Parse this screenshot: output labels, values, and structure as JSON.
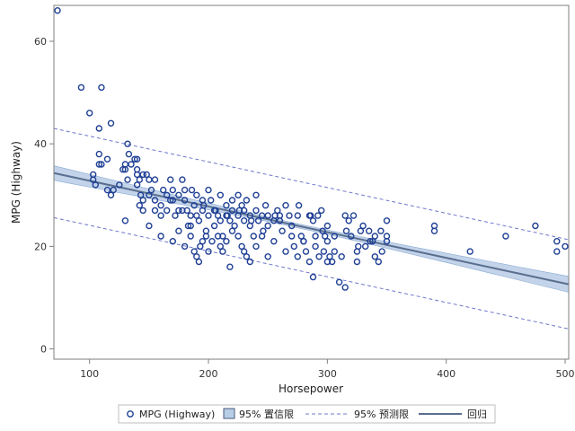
{
  "chart_data": {
    "type": "scatter",
    "title": "",
    "xlabel": "Horsepower",
    "ylabel": "MPG (Highway)",
    "xlim": [
      70,
      503
    ],
    "ylim": [
      -2,
      67
    ],
    "x_ticks": [
      100,
      200,
      300,
      400,
      500
    ],
    "y_ticks": [
      0,
      20,
      40,
      60
    ],
    "grid": false,
    "legend_position": "bottom",
    "colors": {
      "points": "#1f3f94",
      "confidence_band": "#b8cde6",
      "confidence_band_edge": "#8ba9d4",
      "prediction_limits": "#6f78c8",
      "regression_line": "#5a6f8f",
      "frame": "#7f7f7f"
    },
    "series": [
      {
        "name": "MPG (Highway)",
        "kind": "scatter",
        "points": [
          [
            73,
            66
          ],
          [
            93,
            51
          ],
          [
            110,
            51
          ],
          [
            100,
            46
          ],
          [
            118,
            44
          ],
          [
            108,
            43
          ],
          [
            103,
            34
          ],
          [
            103,
            33
          ],
          [
            105,
            32
          ],
          [
            108,
            38
          ],
          [
            108,
            36
          ],
          [
            110,
            36
          ],
          [
            115,
            37
          ],
          [
            120,
            31
          ],
          [
            118,
            30
          ],
          [
            115,
            31
          ],
          [
            125,
            32
          ],
          [
            130,
            36
          ],
          [
            130,
            35
          ],
          [
            132,
            40
          ],
          [
            133,
            38
          ],
          [
            135,
            36
          ],
          [
            132,
            33
          ],
          [
            140,
            37
          ],
          [
            140,
            35
          ],
          [
            140,
            34
          ],
          [
            142,
            33
          ],
          [
            145,
            34
          ],
          [
            150,
            33
          ],
          [
            140,
            32
          ],
          [
            143,
            30
          ],
          [
            142,
            28
          ],
          [
            145,
            27
          ],
          [
            150,
            30
          ],
          [
            152,
            31
          ],
          [
            155,
            29
          ],
          [
            155,
            27
          ],
          [
            160,
            28
          ],
          [
            160,
            26
          ],
          [
            165,
            30
          ],
          [
            165,
            27
          ],
          [
            168,
            33
          ],
          [
            170,
            29
          ],
          [
            170,
            31
          ],
          [
            172,
            26
          ],
          [
            175,
            27
          ],
          [
            175,
            30
          ],
          [
            178,
            33
          ],
          [
            180,
            31
          ],
          [
            180,
            29
          ],
          [
            182,
            27
          ],
          [
            185,
            26
          ],
          [
            185,
            24
          ],
          [
            188,
            28
          ],
          [
            190,
            30
          ],
          [
            190,
            26
          ],
          [
            192,
            25
          ],
          [
            195,
            27
          ],
          [
            195,
            29
          ],
          [
            198,
            22
          ],
          [
            200,
            26
          ],
          [
            200,
            31
          ],
          [
            202,
            29
          ],
          [
            205,
            27
          ],
          [
            205,
            24
          ],
          [
            208,
            26
          ],
          [
            210,
            30
          ],
          [
            210,
            25
          ],
          [
            212,
            22
          ],
          [
            215,
            28
          ],
          [
            215,
            26
          ],
          [
            218,
            25
          ],
          [
            220,
            27
          ],
          [
            220,
            29
          ],
          [
            222,
            24
          ],
          [
            225,
            30
          ],
          [
            225,
            26
          ],
          [
            228,
            28
          ],
          [
            230,
            27
          ],
          [
            230,
            25
          ],
          [
            232,
            29
          ],
          [
            235,
            26
          ],
          [
            235,
            24
          ],
          [
            238,
            22
          ],
          [
            240,
            30
          ],
          [
            240,
            27
          ],
          [
            242,
            25
          ],
          [
            245,
            26
          ],
          [
            248,
            28
          ],
          [
            250,
            24
          ],
          [
            250,
            26
          ],
          [
            255,
            25
          ],
          [
            258,
            27
          ],
          [
            260,
            26
          ],
          [
            262,
            23
          ],
          [
            265,
            28
          ],
          [
            268,
            26
          ],
          [
            270,
            24
          ],
          [
            272,
            20
          ],
          [
            275,
            26
          ],
          [
            278,
            22
          ],
          [
            280,
            21
          ],
          [
            282,
            19
          ],
          [
            285,
            26
          ],
          [
            288,
            25
          ],
          [
            290,
            20
          ],
          [
            292,
            26
          ],
          [
            295,
            27
          ],
          [
            296,
            23
          ],
          [
            298,
            22
          ],
          [
            300,
            24
          ],
          [
            300,
            21
          ],
          [
            302,
            18
          ],
          [
            304,
            17
          ],
          [
            306,
            19
          ],
          [
            130,
            25
          ],
          [
            150,
            24
          ],
          [
            160,
            22
          ],
          [
            170,
            21
          ],
          [
            175,
            23
          ],
          [
            180,
            20
          ],
          [
            183,
            24
          ],
          [
            185,
            22
          ],
          [
            188,
            19
          ],
          [
            190,
            18
          ],
          [
            192,
            17
          ],
          [
            193,
            20
          ],
          [
            195,
            21
          ],
          [
            198,
            23
          ],
          [
            200,
            19
          ],
          [
            203,
            21
          ],
          [
            208,
            22
          ],
          [
            210,
            20
          ],
          [
            212,
            19
          ],
          [
            215,
            21
          ],
          [
            218,
            16
          ],
          [
            220,
            23
          ],
          [
            225,
            22
          ],
          [
            228,
            20
          ],
          [
            230,
            19
          ],
          [
            232,
            18
          ],
          [
            235,
            17
          ],
          [
            240,
            20
          ],
          [
            245,
            22
          ],
          [
            250,
            18
          ],
          [
            255,
            21
          ],
          [
            260,
            25
          ],
          [
            265,
            19
          ],
          [
            270,
            22
          ],
          [
            275,
            18
          ],
          [
            280,
            21
          ],
          [
            285,
            17
          ],
          [
            288,
            14
          ],
          [
            290,
            22
          ],
          [
            293,
            18
          ],
          [
            297,
            19
          ],
          [
            300,
            17
          ],
          [
            310,
            13
          ],
          [
            312,
            18
          ],
          [
            315,
            12
          ],
          [
            315,
            26
          ],
          [
            318,
            25
          ],
          [
            320,
            22
          ],
          [
            322,
            26
          ],
          [
            325,
            17
          ],
          [
            325,
            19
          ],
          [
            328,
            23
          ],
          [
            330,
            24
          ],
          [
            332,
            20
          ],
          [
            335,
            23
          ],
          [
            338,
            21
          ],
          [
            340,
            22
          ],
          [
            340,
            18
          ],
          [
            343,
            17
          ],
          [
            345,
            23
          ],
          [
            350,
            21
          ],
          [
            350,
            22
          ],
          [
            350,
            25
          ],
          [
            390,
            24
          ],
          [
            390,
            23
          ],
          [
            420,
            19
          ],
          [
            450,
            22
          ],
          [
            475,
            24
          ],
          [
            493,
            21
          ],
          [
            493,
            19
          ],
          [
            500,
            20
          ],
          [
            148,
            34
          ],
          [
            138,
            37
          ],
          [
            128,
            35
          ],
          [
            145,
            29
          ],
          [
            155,
            33
          ],
          [
            162,
            31
          ],
          [
            168,
            29
          ],
          [
            178,
            27
          ],
          [
            186,
            31
          ],
          [
            196,
            28
          ],
          [
            206,
            27
          ],
          [
            216,
            26
          ],
          [
            226,
            27
          ],
          [
            236,
            25
          ],
          [
            246,
            23
          ],
          [
            256,
            26
          ],
          [
            276,
            28
          ],
          [
            286,
            26
          ],
          [
            306,
            22
          ],
          [
            316,
            23
          ],
          [
            326,
            20
          ],
          [
            336,
            21
          ],
          [
            346,
            19
          ]
        ]
      },
      {
        "name": "95% 置信限",
        "kind": "band",
        "se_at_mean": 0.4,
        "se_at_end": 1.55
      },
      {
        "name": "95% 预测限",
        "kind": "interval",
        "offset": 8.7
      },
      {
        "name": "回归",
        "kind": "line",
        "x": [
          70,
          503
        ],
        "y": [
          34.3,
          12.6
        ]
      }
    ]
  }
}
